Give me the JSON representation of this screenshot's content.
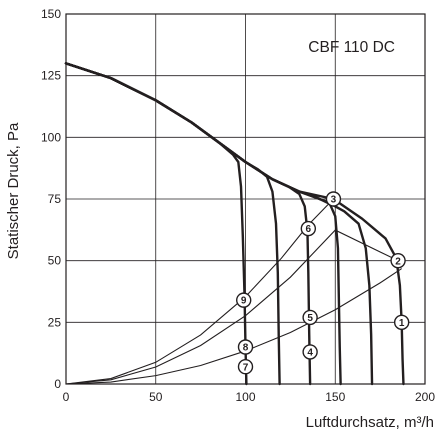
{
  "chart_data": {
    "type": "line",
    "title": "CBF 110 DC",
    "xlabel": "Luftdurchsatz, m³/h",
    "ylabel": "Statischer Druck, Pa",
    "xlim": [
      0,
      200
    ],
    "ylim": [
      0,
      150
    ],
    "x_ticks": [
      "0",
      "50",
      "100",
      "150",
      "200"
    ],
    "y_ticks": [
      "0",
      "25",
      "50",
      "75",
      "100",
      "125",
      "150"
    ],
    "grid": true,
    "legend": "none",
    "fan_curves": [
      {
        "values": [
          [
            0,
            130
          ],
          [
            25,
            124
          ],
          [
            50,
            115
          ],
          [
            70,
            106
          ],
          [
            85,
            98
          ],
          [
            93,
            93
          ],
          [
            96,
            90
          ],
          [
            97.5,
            80
          ],
          [
            98.5,
            60
          ],
          [
            99.5,
            35
          ],
          [
            100,
            15
          ],
          [
            100.5,
            0
          ]
        ]
      },
      {
        "values": [
          [
            0,
            130
          ],
          [
            25,
            124
          ],
          [
            50,
            115
          ],
          [
            70,
            106
          ],
          [
            85,
            98
          ],
          [
            100,
            90
          ],
          [
            107,
            87
          ],
          [
            112,
            84
          ],
          [
            115,
            78
          ],
          [
            117,
            65
          ],
          [
            118,
            45
          ],
          [
            118.5,
            20
          ],
          [
            119,
            0
          ]
        ]
      },
      {
        "values": [
          [
            0,
            130
          ],
          [
            25,
            124
          ],
          [
            50,
            115
          ],
          [
            70,
            106
          ],
          [
            85,
            98
          ],
          [
            100,
            90
          ],
          [
            115,
            83
          ],
          [
            124,
            80
          ],
          [
            130,
            77
          ],
          [
            133,
            72
          ],
          [
            134.5,
            62
          ],
          [
            135,
            45
          ],
          [
            135.5,
            20
          ],
          [
            136,
            0
          ]
        ]
      },
      {
        "values": [
          [
            0,
            130
          ],
          [
            25,
            124
          ],
          [
            50,
            115
          ],
          [
            70,
            106
          ],
          [
            85,
            98
          ],
          [
            100,
            90
          ],
          [
            115,
            83
          ],
          [
            130,
            78
          ],
          [
            140,
            75.5
          ],
          [
            147,
            73
          ],
          [
            150,
            68
          ],
          [
            151.5,
            55
          ],
          [
            152,
            35
          ],
          [
            152.5,
            15
          ],
          [
            153,
            0
          ]
        ]
      },
      {
        "values": [
          [
            0,
            130
          ],
          [
            25,
            124
          ],
          [
            50,
            115
          ],
          [
            70,
            106
          ],
          [
            85,
            98
          ],
          [
            100,
            90
          ],
          [
            115,
            83
          ],
          [
            130,
            78
          ],
          [
            145,
            74
          ],
          [
            155,
            70
          ],
          [
            163,
            65
          ],
          [
            167,
            55
          ],
          [
            169,
            40
          ],
          [
            170,
            20
          ],
          [
            170.5,
            0
          ]
        ]
      },
      {
        "values": [
          [
            0,
            130
          ],
          [
            25,
            124
          ],
          [
            50,
            115
          ],
          [
            70,
            106
          ],
          [
            85,
            98
          ],
          [
            100,
            90
          ],
          [
            115,
            83
          ],
          [
            130,
            78
          ],
          [
            149,
            75
          ],
          [
            165,
            67
          ],
          [
            178,
            59
          ],
          [
            184,
            51
          ],
          [
            186,
            40
          ],
          [
            187,
            25
          ],
          [
            187.5,
            10
          ],
          [
            188,
            0
          ]
        ]
      }
    ],
    "system_curves": [
      {
        "values": [
          [
            0,
            0
          ],
          [
            25,
            0.8
          ],
          [
            50,
            3.4
          ],
          [
            75,
            7.5
          ],
          [
            100,
            13.4
          ],
          [
            125,
            20.9
          ],
          [
            150,
            30.1
          ],
          [
            175,
            41
          ],
          [
            187,
            46.8
          ]
        ]
      },
      {
        "values": [
          [
            0,
            0
          ],
          [
            25,
            1.7
          ],
          [
            50,
            6.9
          ],
          [
            75,
            15.6
          ],
          [
            100,
            27.7
          ],
          [
            125,
            43.3
          ],
          [
            150,
            62.4
          ],
          [
            185,
            50
          ]
        ]
      },
      {
        "values": [
          [
            0,
            0
          ],
          [
            25,
            2.2
          ],
          [
            50,
            8.8
          ],
          [
            75,
            19.9
          ],
          [
            100,
            35.4
          ],
          [
            120,
            51
          ],
          [
            135,
            64.5
          ],
          [
            149,
            75
          ]
        ]
      }
    ],
    "markers": [
      {
        "label": "1",
        "x": 187,
        "y": 25
      },
      {
        "label": "2",
        "x": 185,
        "y": 50
      },
      {
        "label": "3",
        "x": 149,
        "y": 75
      },
      {
        "label": "4",
        "x": 136,
        "y": 13
      },
      {
        "label": "5",
        "x": 136,
        "y": 27
      },
      {
        "label": "6",
        "x": 135,
        "y": 63
      },
      {
        "label": "7",
        "x": 100,
        "y": 7
      },
      {
        "label": "8",
        "x": 100,
        "y": 15
      },
      {
        "label": "9",
        "x": 99,
        "y": 34
      }
    ]
  }
}
